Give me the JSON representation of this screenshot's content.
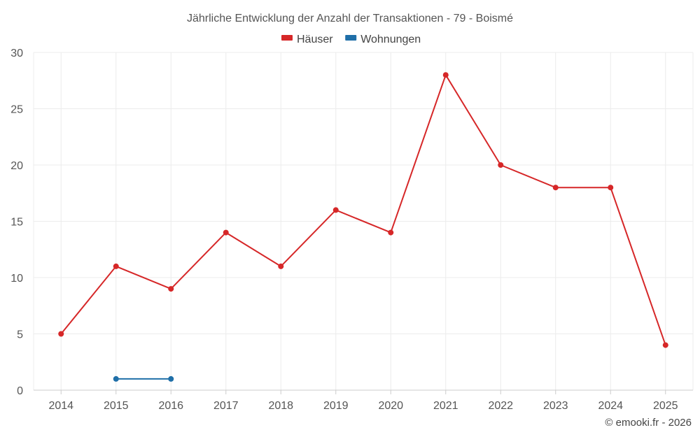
{
  "chart_data": {
    "type": "line",
    "title": "Jährliche Entwicklung der Anzahl der Transaktionen - 79 - Boismé",
    "categories": [
      "2014",
      "2015",
      "2016",
      "2017",
      "2018",
      "2019",
      "2020",
      "2021",
      "2022",
      "2023",
      "2024",
      "2025"
    ],
    "series": [
      {
        "name": "Häuser",
        "color": "#d62728",
        "values": [
          5,
          11,
          9,
          14,
          11,
          16,
          14,
          28,
          20,
          18,
          18,
          4
        ]
      },
      {
        "name": "Wohnungen",
        "color": "#1f6fa8",
        "values": [
          null,
          1,
          1,
          null,
          null,
          null,
          null,
          null,
          null,
          null,
          null,
          null
        ]
      }
    ],
    "ylim": [
      0,
      30
    ],
    "yticks": [
      0,
      5,
      10,
      15,
      20,
      25,
      30
    ],
    "grid": true,
    "legend_position": "top-center"
  },
  "credit": "© emooki.fr - 2026"
}
